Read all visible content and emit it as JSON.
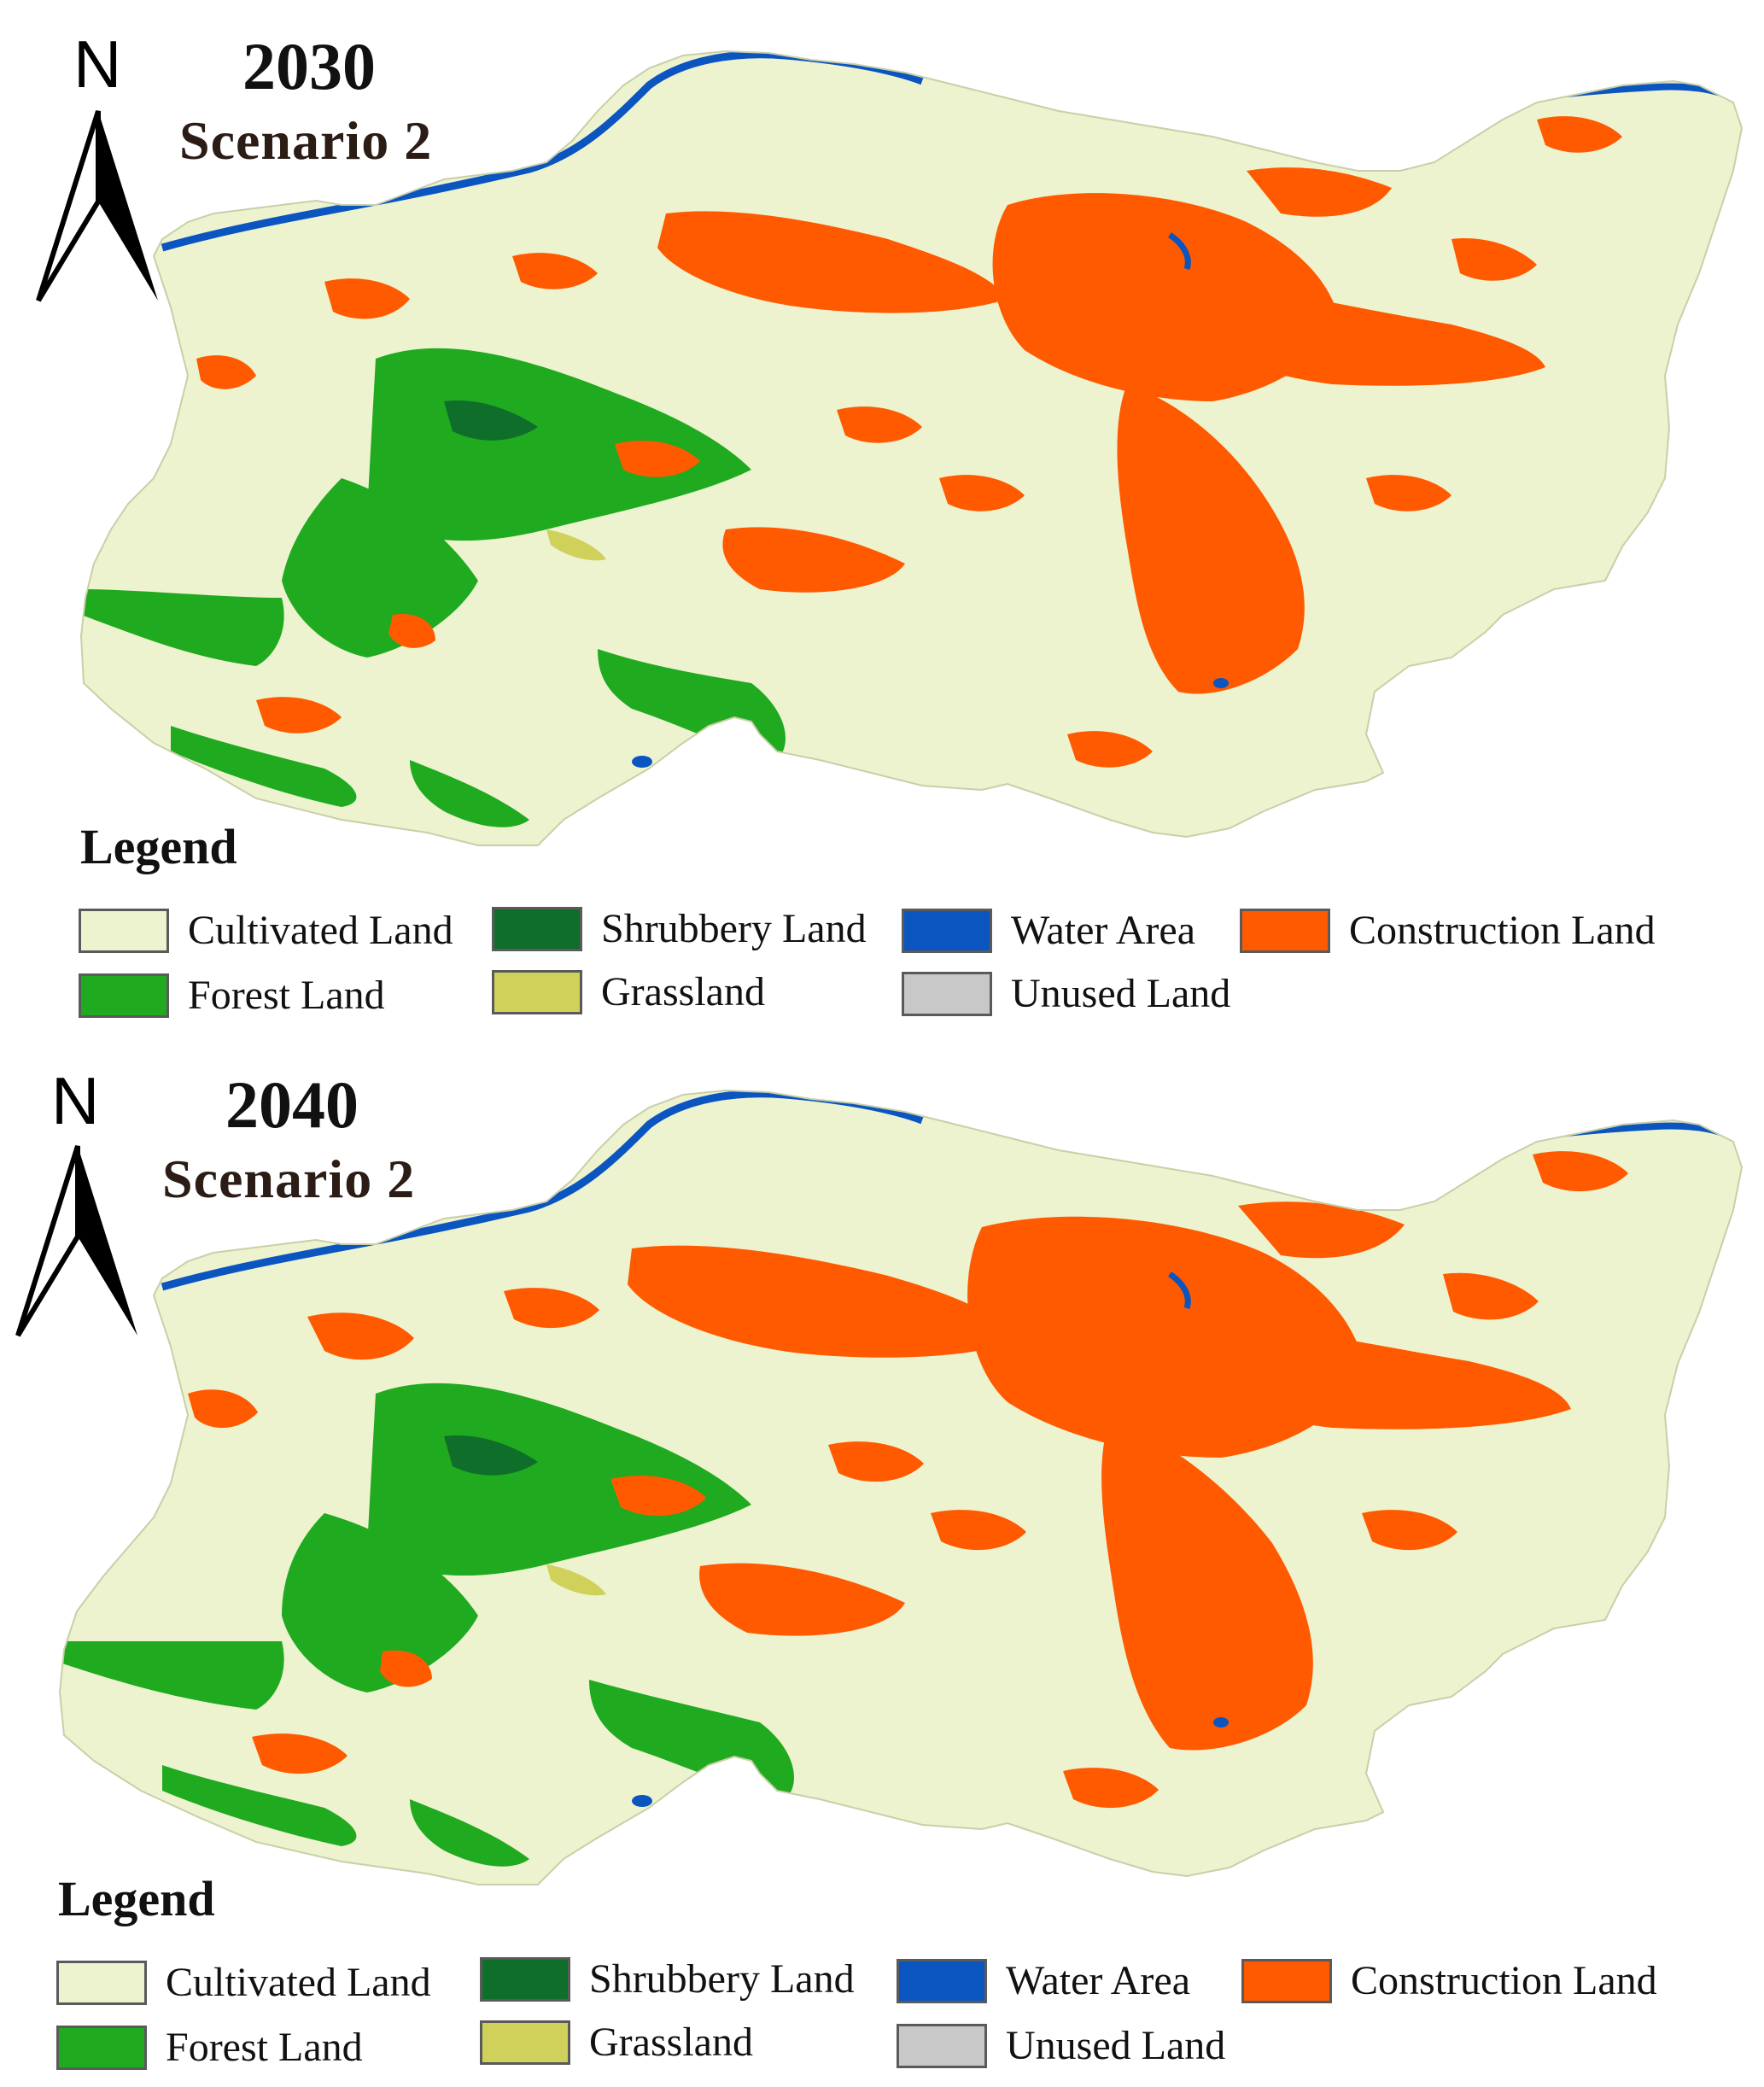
{
  "colors": {
    "cultivated": "#eef3cf",
    "forest": "#1faa1f",
    "shrubbery": "#0e6e2a",
    "grassland": "#cfd15a",
    "water": "#0b55c0",
    "construction": "#ff5a00",
    "unused": "#c8c8c8"
  },
  "north_label": "N",
  "panels": [
    {
      "year": "2030",
      "scenario": "Scenario 2"
    },
    {
      "year": "2040",
      "scenario": "Scenario 2"
    }
  ],
  "legend": {
    "title": "Legend",
    "items": [
      {
        "label": "Cultivated Land",
        "color": "#eef3cf"
      },
      {
        "label": "Forest Land",
        "color": "#1faa1f"
      },
      {
        "label": "Shrubbery Land",
        "color": "#0e6e2a"
      },
      {
        "label": "Grassland",
        "color": "#cfd15a"
      },
      {
        "label": "Water Area",
        "color": "#0b55c0"
      },
      {
        "label": "Unused Land",
        "color": "#c8c8c8"
      },
      {
        "label": "Construction Land",
        "color": "#ff5a00"
      }
    ]
  }
}
